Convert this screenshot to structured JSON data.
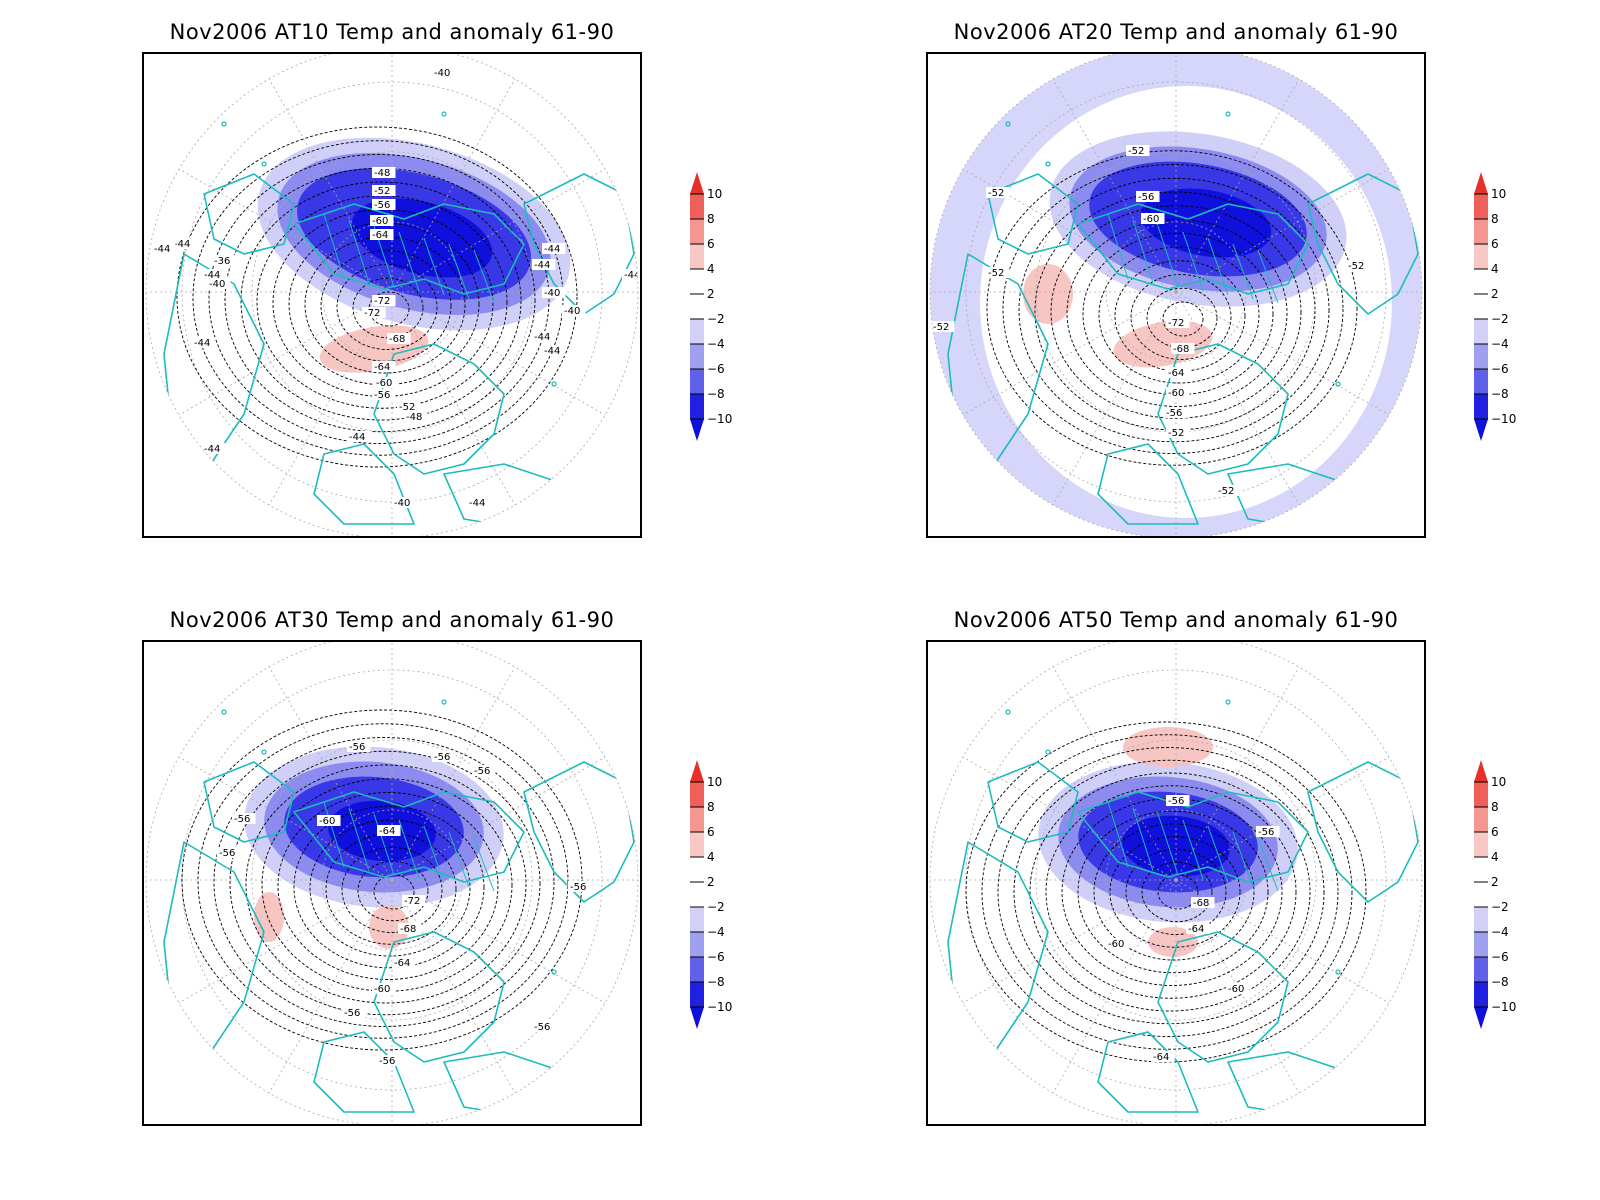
{
  "panels": [
    {
      "title": "Nov2006 AT10 Temp and anomaly 61-90",
      "contour_labels": [
        "-40",
        "-44",
        "-44",
        "-44",
        "-44",
        "-40",
        "-44",
        "-44",
        "-44",
        "-40",
        "-44",
        "-44",
        "-36",
        "-40",
        "-48",
        "-52",
        "-56",
        "-60",
        "-64",
        "-72",
        "-72",
        "-68",
        "-64",
        "-60",
        "-56",
        "-52",
        "-48",
        "-44",
        "-44",
        "-44",
        "-40"
      ]
    },
    {
      "title": "Nov2006 AT20 Temp and anomaly 61-90",
      "contour_labels": [
        "-52",
        "-52",
        "-52",
        "-52",
        "-52",
        "-56",
        "-60",
        "-72",
        "-68",
        "-64",
        "-60",
        "-56",
        "-52",
        "-52"
      ]
    },
    {
      "title": "Nov2006 AT30 Temp and anomaly 61-90",
      "contour_labels": [
        "-56",
        "-56",
        "-56",
        "-56",
        "-56",
        "-60",
        "-64",
        "-72",
        "-68",
        "-64",
        "-60",
        "-56",
        "-56",
        "-56",
        "-56"
      ]
    },
    {
      "title": "Nov2006 AT50 Temp and anomaly 61-90",
      "contour_labels": [
        "-56",
        "-56",
        "-68",
        "-64",
        "-60",
        "-60",
        "-64"
      ]
    }
  ],
  "colorbar": {
    "tick_labels": [
      "10",
      "8",
      "6",
      "4",
      "2",
      "−2",
      "−4",
      "−6",
      "−8",
      "−10"
    ],
    "colors": [
      "#e8302a",
      "#f0605a",
      "#f39790",
      "#f8c8c4",
      "#ffffff",
      "#ffffff",
      "#d0d0f8",
      "#a0a0f0",
      "#6060ea",
      "#2020e0",
      "#1010dc"
    ]
  },
  "colors": {
    "coastline": "#1dbcbc",
    "contour": "#000000",
    "grid": "#aaaaaa",
    "blue_anomaly": "#1010dc",
    "red_anomaly": "#f6b8b4"
  }
}
